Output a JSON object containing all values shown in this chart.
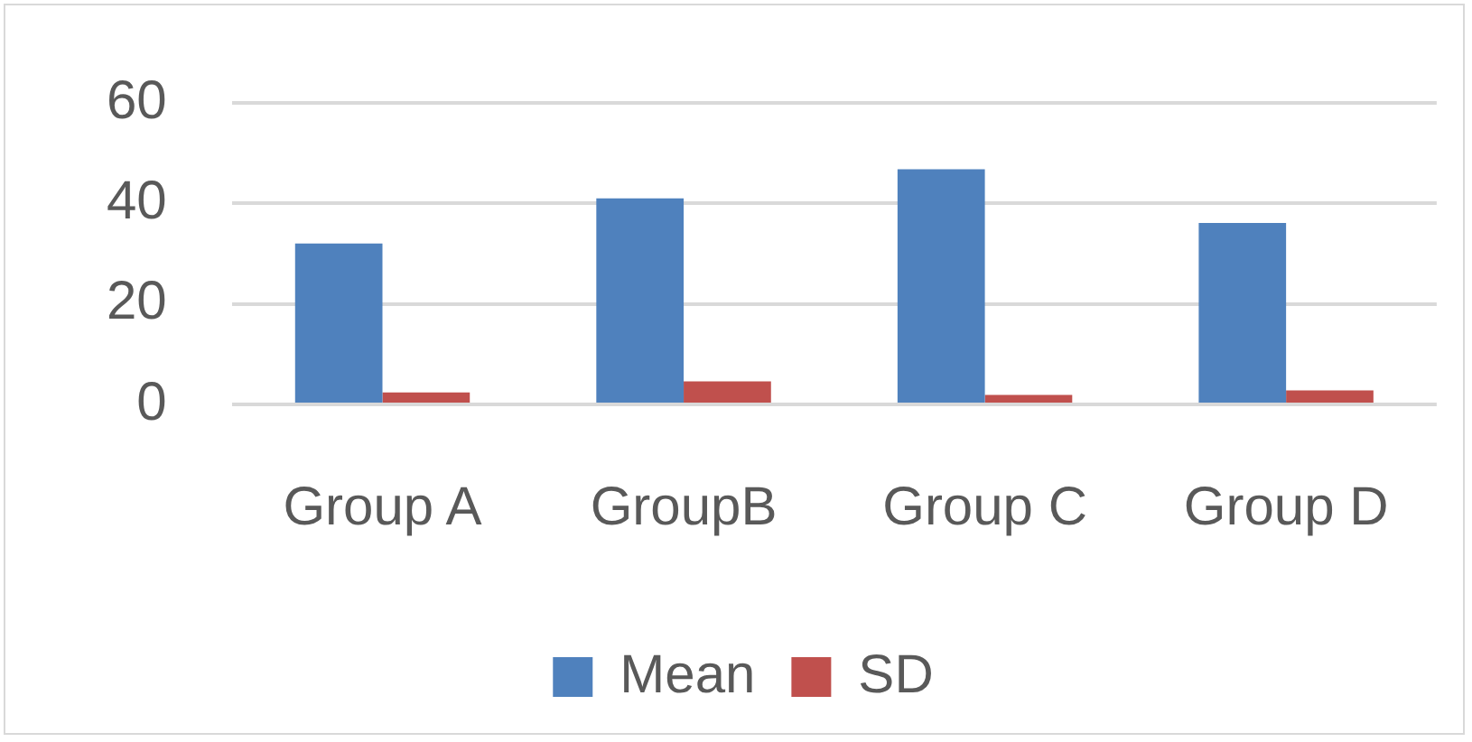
{
  "chart_data": {
    "type": "bar",
    "categories": [
      "Group A",
      "GroupB",
      "Group C",
      "Group D"
    ],
    "series": [
      {
        "name": "Mean",
        "color": "#4f81bd",
        "values": [
          32,
          41,
          46.8,
          36.1
        ]
      },
      {
        "name": "SD",
        "color": "#c0504d",
        "values": [
          2.4,
          4.6,
          1.9,
          2.8
        ]
      }
    ],
    "ylim": [
      0,
      60
    ],
    "yticks": [
      0,
      20,
      40,
      60
    ],
    "grid": "y",
    "legend": "bottom"
  }
}
